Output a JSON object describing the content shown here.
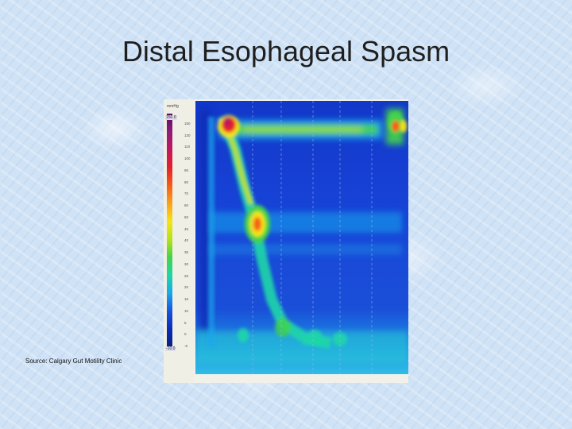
{
  "slide": {
    "title": "Distal Esophageal Spasm",
    "source": "Source: Calgary Gut Motility Clinic"
  },
  "colorbar": {
    "unit": "mmHg",
    "max_label": "150.0",
    "min_label": "-10.0",
    "ticks": [
      "150",
      "130",
      "110",
      "100",
      "90",
      "80",
      "70",
      "60",
      "50",
      "45",
      "40",
      "35",
      "30",
      "25",
      "20",
      "15",
      "10",
      "5",
      "0",
      "-5"
    ],
    "colors": [
      "#5b0f63",
      "#8e1c7a",
      "#c0185d",
      "#e4202a",
      "#f55e18",
      "#f9a21b",
      "#f5e415",
      "#b7e21c",
      "#44d34a",
      "#1dd6a8",
      "#1aa7ec",
      "#1553dd",
      "#0b2bb8",
      "#06207f"
    ]
  }
}
